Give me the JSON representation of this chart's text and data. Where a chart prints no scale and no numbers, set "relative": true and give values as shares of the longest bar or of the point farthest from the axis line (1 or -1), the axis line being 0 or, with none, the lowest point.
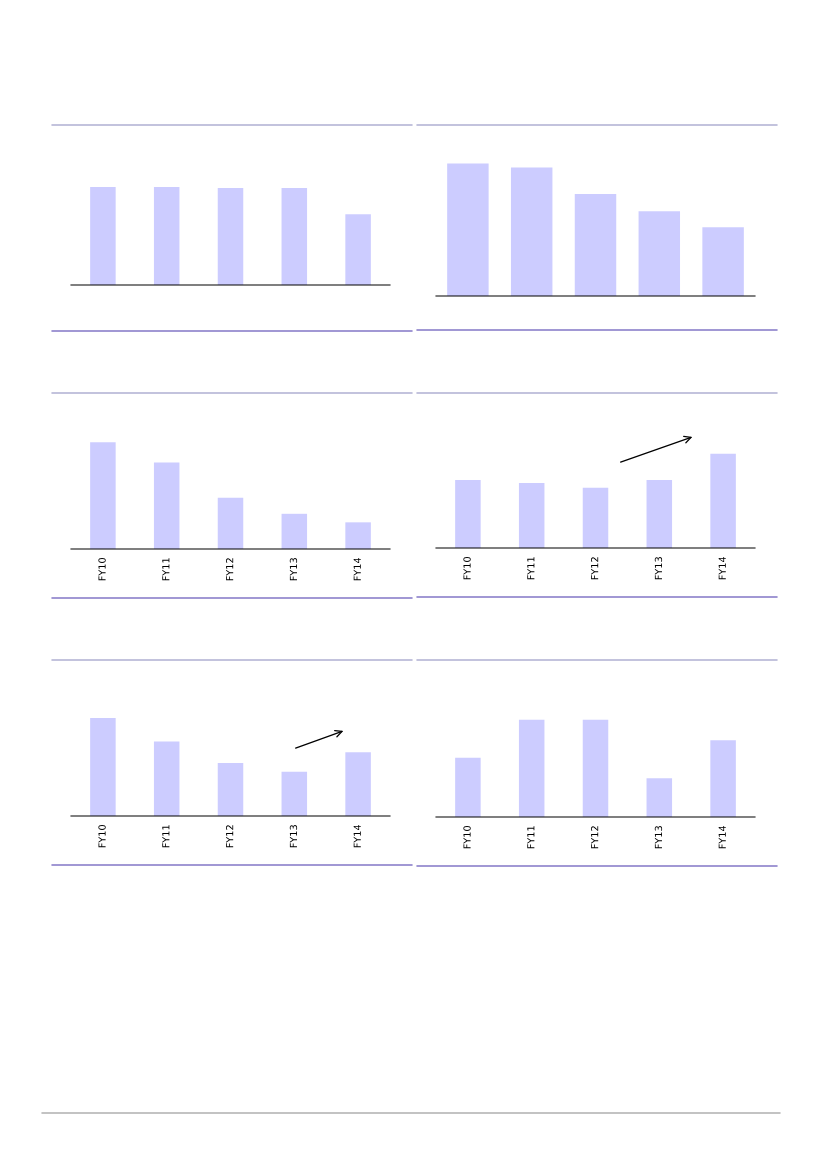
{
  "chart_data": [
    {
      "type": "bar",
      "categories": [
        null,
        null,
        null,
        null,
        null
      ],
      "values": [
        1,
        1,
        0.99,
        0.99,
        0.72
      ],
      "color": "#ccccff",
      "relative": true
    },
    {
      "type": "bar",
      "categories": [
        null,
        null,
        null,
        null,
        null
      ],
      "values": [
        1,
        0.97,
        0.77,
        0.64,
        0.52
      ],
      "color": "#ccccff",
      "relative": true
    },
    {
      "type": "bar",
      "categories": [
        "FY10",
        "FY11",
        "FY12",
        "FY13",
        "FY14"
      ],
      "values": [
        1,
        0.81,
        0.48,
        0.33,
        0.25
      ],
      "color": "#ccccff",
      "relative": true
    },
    {
      "type": "bar",
      "categories": [
        "FY10",
        "FY11",
        "FY12",
        "FY13",
        "FY14"
      ],
      "values": [
        0.72,
        0.69,
        0.64,
        0.72,
        1
      ],
      "color": "#ccccff",
      "relative": true
    },
    {
      "type": "bar",
      "categories": [
        "FY10",
        "FY11",
        "FY12",
        "FY13",
        "FY14"
      ],
      "values": [
        1,
        0.76,
        0.54,
        0.45,
        0.65
      ],
      "color": "#ccccff",
      "relative": true
    },
    {
      "type": "bar",
      "categories": [
        "FY10",
        "FY11",
        "FY12",
        "FY13",
        "FY14"
      ],
      "values": [
        0.61,
        1,
        1,
        0.4,
        0.79
      ],
      "color": "#ccccff",
      "relative": true
    }
  ]
}
